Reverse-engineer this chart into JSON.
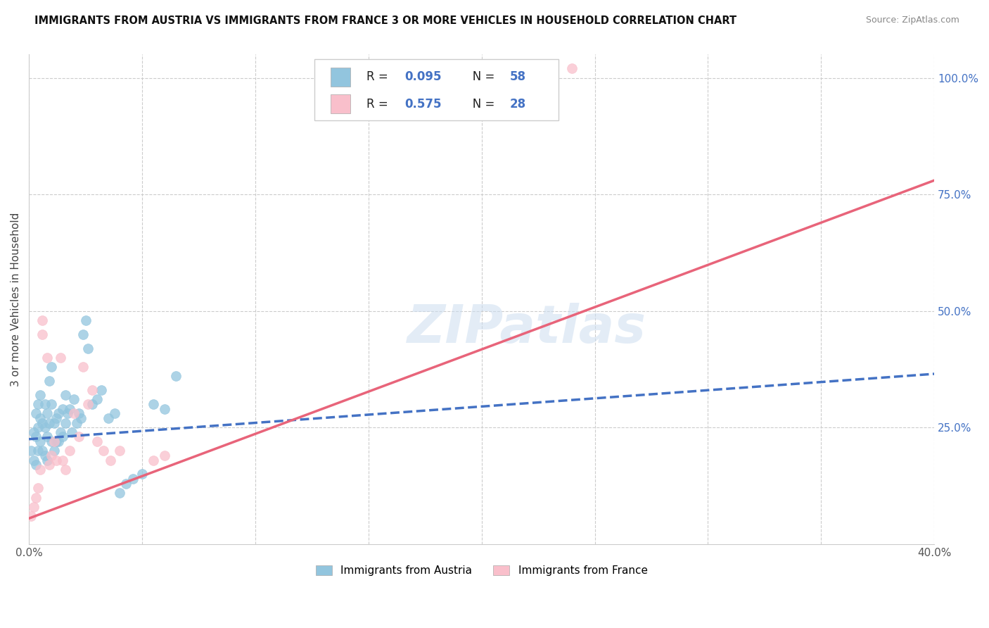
{
  "title": "IMMIGRANTS FROM AUSTRIA VS IMMIGRANTS FROM FRANCE 3 OR MORE VEHICLES IN HOUSEHOLD CORRELATION CHART",
  "source": "Source: ZipAtlas.com",
  "ylabel": "3 or more Vehicles in Household",
  "x_min": 0.0,
  "x_max": 0.4,
  "y_min": 0.0,
  "y_max": 1.05,
  "austria_color": "#92C5DE",
  "france_color": "#F9BFCB",
  "austria_line_color": "#4472C4",
  "france_line_color": "#E8647A",
  "legend_text_color": "#4472C4",
  "R_austria": 0.095,
  "N_austria": 58,
  "R_france": 0.575,
  "N_france": 28,
  "legend_label_austria": "Immigrants from Austria",
  "legend_label_france": "Immigrants from France",
  "watermark": "ZIPatlas",
  "austria_line_y0": 0.225,
  "austria_line_y1": 0.365,
  "france_line_y0": 0.055,
  "france_line_y1": 0.78,
  "austria_x": [
    0.001,
    0.002,
    0.002,
    0.003,
    0.003,
    0.003,
    0.004,
    0.004,
    0.004,
    0.005,
    0.005,
    0.005,
    0.006,
    0.006,
    0.007,
    0.007,
    0.007,
    0.008,
    0.008,
    0.008,
    0.009,
    0.009,
    0.01,
    0.01,
    0.01,
    0.011,
    0.011,
    0.012,
    0.012,
    0.013,
    0.013,
    0.014,
    0.015,
    0.015,
    0.016,
    0.016,
    0.017,
    0.018,
    0.019,
    0.02,
    0.021,
    0.022,
    0.023,
    0.024,
    0.025,
    0.026,
    0.028,
    0.03,
    0.032,
    0.035,
    0.038,
    0.04,
    0.043,
    0.046,
    0.05,
    0.055,
    0.06,
    0.065
  ],
  "austria_y": [
    0.2,
    0.24,
    0.18,
    0.28,
    0.23,
    0.17,
    0.3,
    0.25,
    0.2,
    0.32,
    0.27,
    0.22,
    0.26,
    0.2,
    0.3,
    0.25,
    0.19,
    0.28,
    0.23,
    0.18,
    0.35,
    0.26,
    0.38,
    0.3,
    0.22,
    0.26,
    0.2,
    0.27,
    0.22,
    0.28,
    0.22,
    0.24,
    0.29,
    0.23,
    0.32,
    0.26,
    0.28,
    0.29,
    0.24,
    0.31,
    0.26,
    0.28,
    0.27,
    0.45,
    0.48,
    0.42,
    0.3,
    0.31,
    0.33,
    0.27,
    0.28,
    0.11,
    0.13,
    0.14,
    0.15,
    0.3,
    0.29,
    0.36
  ],
  "france_x": [
    0.001,
    0.002,
    0.003,
    0.004,
    0.005,
    0.006,
    0.006,
    0.008,
    0.009,
    0.01,
    0.011,
    0.012,
    0.014,
    0.015,
    0.016,
    0.018,
    0.02,
    0.022,
    0.024,
    0.026,
    0.028,
    0.03,
    0.033,
    0.036,
    0.04,
    0.055,
    0.06,
    0.24
  ],
  "france_y": [
    0.06,
    0.08,
    0.1,
    0.12,
    0.16,
    0.45,
    0.48,
    0.4,
    0.17,
    0.19,
    0.22,
    0.18,
    0.4,
    0.18,
    0.16,
    0.2,
    0.28,
    0.23,
    0.38,
    0.3,
    0.33,
    0.22,
    0.2,
    0.18,
    0.2,
    0.18,
    0.19,
    1.02
  ]
}
